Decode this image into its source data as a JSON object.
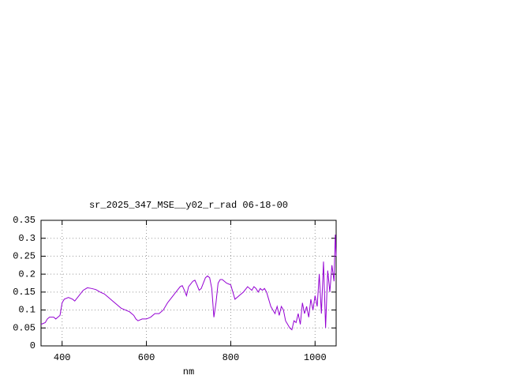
{
  "chart_data": {
    "type": "line",
    "title": "sr_2025_347_MSE__y02_r_rad 06-18-00",
    "x_label": "nm",
    "x": [
      350,
      360,
      365,
      370,
      380,
      385,
      390,
      395,
      400,
      405,
      415,
      425,
      430,
      440,
      450,
      460,
      470,
      480,
      490,
      500,
      510,
      520,
      530,
      540,
      550,
      560,
      570,
      575,
      580,
      590,
      600,
      610,
      620,
      630,
      640,
      650,
      660,
      670,
      680,
      685,
      690,
      695,
      700,
      710,
      715,
      720,
      725,
      730,
      740,
      745,
      750,
      755,
      760,
      765,
      770,
      775,
      780,
      790,
      800,
      810,
      820,
      830,
      840,
      850,
      855,
      860,
      865,
      870,
      875,
      880,
      885,
      890,
      895,
      900,
      905,
      910,
      915,
      920,
      925,
      930,
      935,
      940,
      945,
      950,
      955,
      960,
      965,
      970,
      975,
      980,
      985,
      990,
      995,
      1000,
      1005,
      1010,
      1015,
      1020,
      1025,
      1030,
      1035,
      1040,
      1045,
      1048,
      1050
    ],
    "series": [
      {
        "name": "sr_2025_347_MSE__y02_r_rad",
        "color": "#9400d3",
        "values": [
          0.06,
          0.065,
          0.075,
          0.08,
          0.08,
          0.075,
          0.08,
          0.085,
          0.12,
          0.13,
          0.135,
          0.13,
          0.125,
          0.14,
          0.155,
          0.162,
          0.16,
          0.157,
          0.15,
          0.145,
          0.135,
          0.125,
          0.115,
          0.105,
          0.1,
          0.095,
          0.085,
          0.075,
          0.07,
          0.075,
          0.075,
          0.08,
          0.09,
          0.09,
          0.1,
          0.12,
          0.135,
          0.15,
          0.165,
          0.168,
          0.155,
          0.14,
          0.165,
          0.18,
          0.183,
          0.17,
          0.155,
          0.16,
          0.19,
          0.195,
          0.19,
          0.16,
          0.08,
          0.12,
          0.175,
          0.185,
          0.185,
          0.175,
          0.17,
          0.13,
          0.14,
          0.15,
          0.165,
          0.155,
          0.165,
          0.16,
          0.15,
          0.16,
          0.155,
          0.16,
          0.15,
          0.13,
          0.11,
          0.1,
          0.09,
          0.11,
          0.085,
          0.11,
          0.1,
          0.07,
          0.06,
          0.05,
          0.045,
          0.07,
          0.065,
          0.09,
          0.06,
          0.12,
          0.09,
          0.11,
          0.08,
          0.13,
          0.1,
          0.14,
          0.11,
          0.2,
          0.09,
          0.235,
          0.05,
          0.21,
          0.15,
          0.225,
          0.18,
          0.31,
          0.25
        ]
      }
    ],
    "xlim": [
      350,
      1050
    ],
    "xticks": [
      400,
      600,
      800,
      1000
    ],
    "ylim": [
      0,
      0.35
    ],
    "yticks": [
      0,
      0.05,
      0.1,
      0.15,
      0.2,
      0.25,
      0.3,
      0.35
    ],
    "grid": true
  }
}
